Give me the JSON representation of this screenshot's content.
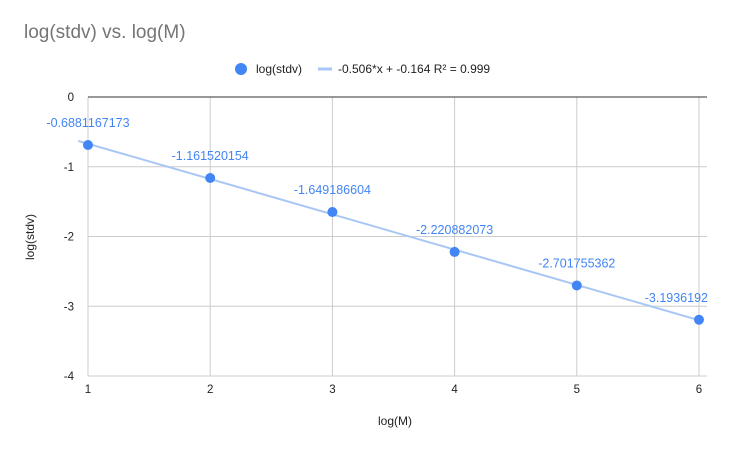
{
  "title": "log(stdv) vs. log(M)",
  "colors": {
    "point": "#4285f4",
    "trendline": "#a8c7f5",
    "label": "#4285f4",
    "grid": "#cccccc",
    "axis": "#333333"
  },
  "legend": {
    "series_label": "log(stdv)",
    "trend_label": "-0.506*x + -0.164 R² = 0.999"
  },
  "chart_data": {
    "type": "scatter",
    "title": "log(stdv) vs. log(M)",
    "xlabel": "log(M)",
    "ylabel": "log(stdv)",
    "xlim": [
      1,
      6
    ],
    "ylim": [
      -4,
      0
    ],
    "xticks": [
      1,
      2,
      3,
      4,
      5,
      6
    ],
    "yticks": [
      0,
      -1,
      -2,
      -3,
      -4
    ],
    "grid": true,
    "legend_position": "top",
    "series": [
      {
        "name": "log(stdv)",
        "x": [
          1,
          2,
          3,
          4,
          5,
          6
        ],
        "y": [
          -0.6881167173,
          -1.161520154,
          -1.649186604,
          -2.220882073,
          -2.701755362,
          -3.1936192
        ],
        "labels": [
          "-0.6881167173",
          "-1.161520154",
          "-1.649186604",
          "-2.220882073",
          "-2.701755362",
          "-3.1936192"
        ]
      }
    ],
    "trendline": {
      "slope": -0.506,
      "intercept": -0.164,
      "r2": 0.999,
      "label": "-0.506*x + -0.164 R² = 0.999"
    }
  }
}
